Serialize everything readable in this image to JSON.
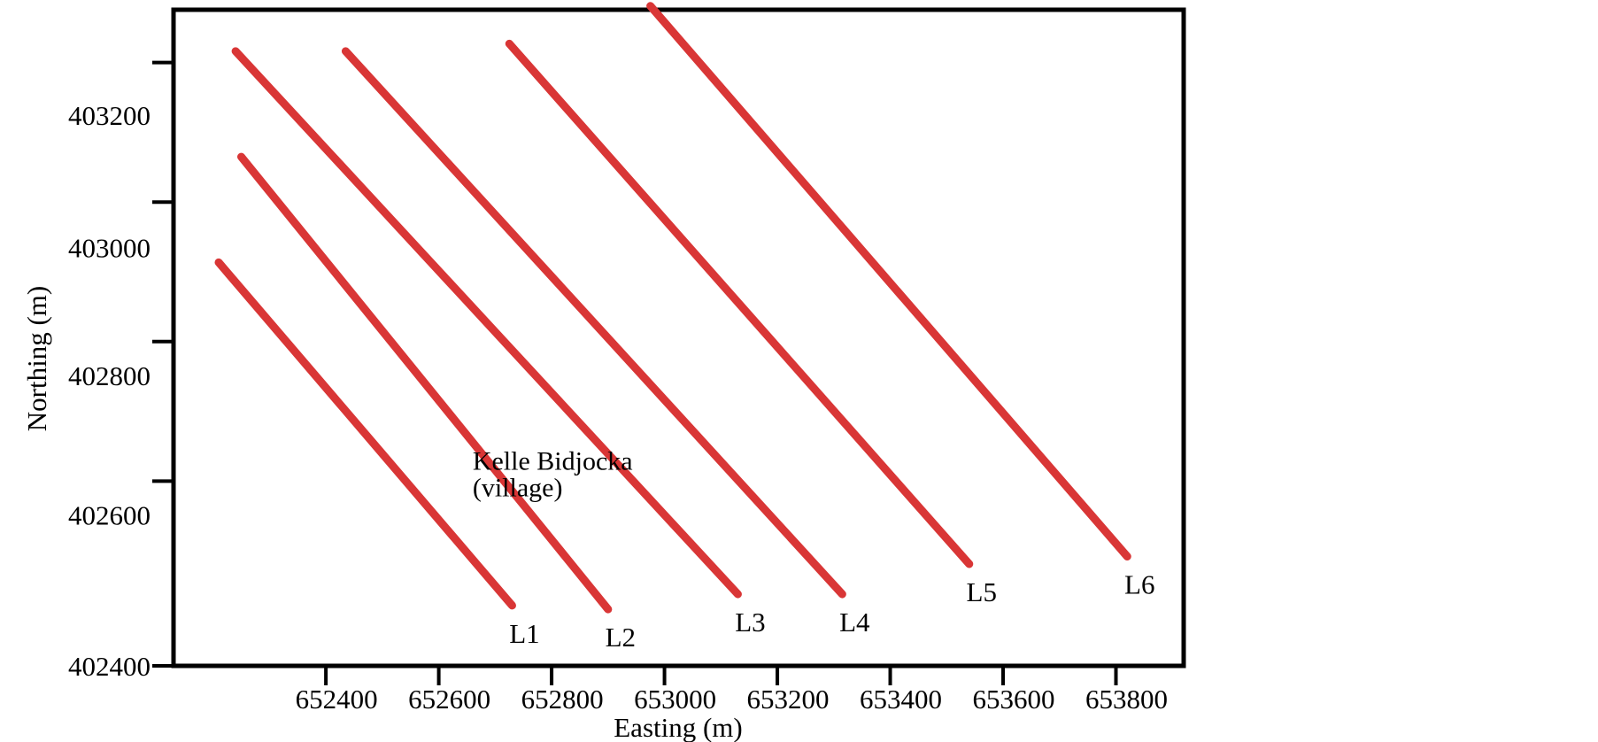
{
  "chart_data": {
    "type": "line",
    "xlabel": "Easting (m)",
    "ylabel": "Northing (m)",
    "xlim": [
      652130,
      653920
    ],
    "ylim": [
      402400,
      403270
    ],
    "x_ticks": [
      652400,
      652600,
      652800,
      653000,
      653200,
      653400,
      653600,
      653800
    ],
    "x_tick_labels": [
      "652400",
      "652600",
      "652800",
      "653000",
      "653200",
      "653400",
      "653600",
      "653800"
    ],
    "y_tick_labels": [
      {
        "value": 403200,
        "label": "403200",
        "value_at_label": 403130
      },
      {
        "value": 403015,
        "label": "403000",
        "value_at_label": 402955
      },
      {
        "value": 402830,
        "label": "402800",
        "value_at_label": 402785
      },
      {
        "value": 402645,
        "label": "402600",
        "value_at_label": 402600
      },
      {
        "value": 402400,
        "label": "402400",
        "value_at_label": 402400
      }
    ],
    "grid": false,
    "line_color": "#d93636",
    "series": [
      {
        "name": "L1",
        "x": [
          652210,
          652730
        ],
        "y": [
          402935,
          402480
        ]
      },
      {
        "name": "L2",
        "x": [
          652250,
          652900
        ],
        "y": [
          403075,
          402475
        ]
      },
      {
        "name": "L3",
        "x": [
          652240,
          653130
        ],
        "y": [
          403215,
          402495
        ]
      },
      {
        "name": "L4",
        "x": [
          652435,
          653315
        ],
        "y": [
          403215,
          402495
        ]
      },
      {
        "name": "L5",
        "x": [
          652725,
          653540
        ],
        "y": [
          403225,
          402535
        ]
      },
      {
        "name": "L6",
        "x": [
          652975,
          653820
        ],
        "y": [
          403275,
          402545
        ]
      }
    ],
    "annotations": [
      {
        "text": "Kelle Bidjocka",
        "x": 652660,
        "y": 402660
      },
      {
        "text": "(village)",
        "x": 652660,
        "y": 402625
      }
    ]
  }
}
